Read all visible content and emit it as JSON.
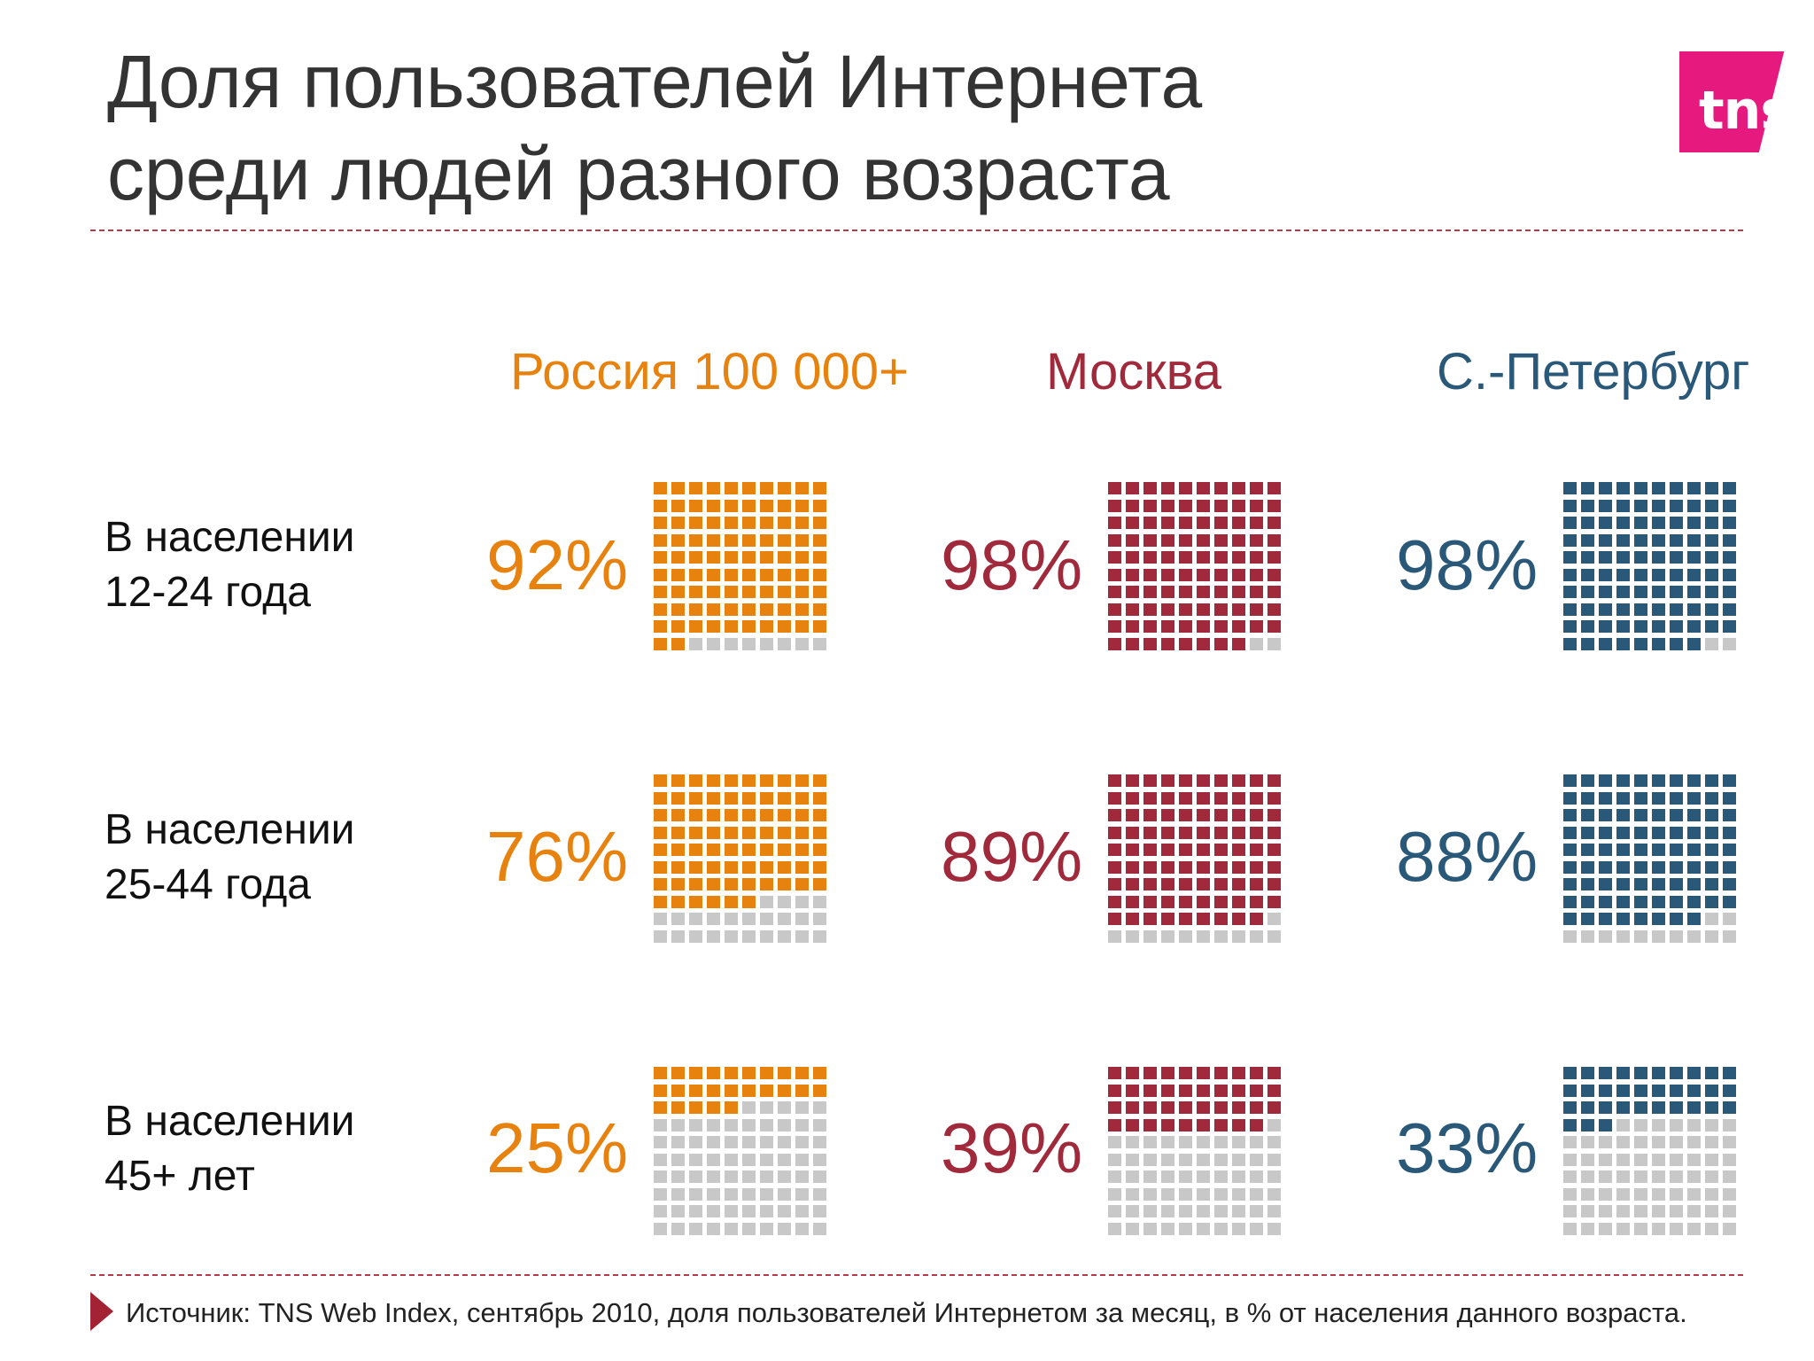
{
  "page": {
    "title_line1": "Доля пользователей Интернета",
    "title_line2": "среди людей разного возраста",
    "logo_text": "tns",
    "footer": "Источник: TNS Web Index, сентябрь 2010, доля пользователей Интернетом за месяц, в % от населения  данного возраста."
  },
  "colors": {
    "russia": "#e8820f",
    "moscow": "#a02a3b",
    "spb": "#2a5878",
    "empty": "#c8c8c8",
    "accent_line": "#b43c4a",
    "logo": "#e6197f"
  },
  "chart_data": {
    "type": "waffle",
    "grid": {
      "columns": 10,
      "rows": 10,
      "total": 100
    },
    "columns": [
      "Россия 100 000+",
      "Москва",
      "С.-Петербург"
    ],
    "rows": [
      {
        "label_line1": "В населении",
        "label_line2": "12-24 года",
        "values": [
          92,
          98,
          98
        ],
        "labels": [
          "92%",
          "98%",
          "98%"
        ]
      },
      {
        "label_line1": "В населении",
        "label_line2": "25-44 года",
        "values": [
          76,
          89,
          88
        ],
        "labels": [
          "76%",
          "89%",
          "88%"
        ]
      },
      {
        "label_line1": "В населении",
        "label_line2": "45+ лет",
        "values": [
          25,
          39,
          33
        ],
        "labels": [
          "25%",
          "39%",
          "33%"
        ]
      }
    ],
    "unit": "%"
  }
}
